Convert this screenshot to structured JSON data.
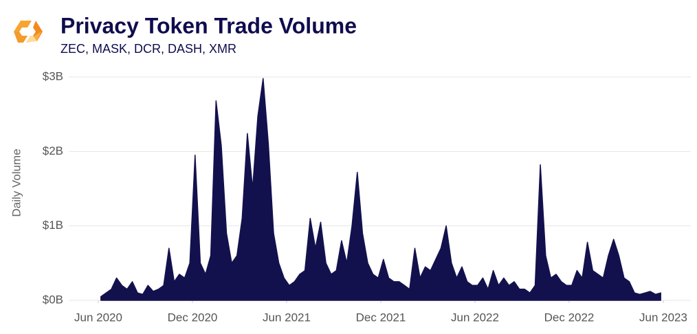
{
  "chart_data": {
    "type": "area",
    "title": "Privacy Token Trade Volume",
    "subtitle": "ZEC, MASK, DCR, DASH, XMR",
    "y_label": "Daily Volume",
    "color": "#13114d",
    "grid": true,
    "xlim": [
      "2020-06",
      "2023-06"
    ],
    "xticks": [
      {
        "value": "2020-06",
        "label": "Jun 2020"
      },
      {
        "value": "2020-12",
        "label": "Dec 2020"
      },
      {
        "value": "2021-06",
        "label": "Jun 2021"
      },
      {
        "value": "2021-12",
        "label": "Dec 2021"
      },
      {
        "value": "2022-06",
        "label": "Jun 2022"
      },
      {
        "value": "2022-12",
        "label": "Dec 2022"
      },
      {
        "value": "2023-06",
        "label": "Jun 2023"
      }
    ],
    "ylim": [
      0,
      3
    ],
    "yticks": [
      {
        "value": 0,
        "label": "$0B"
      },
      {
        "value": 1,
        "label": "$1B"
      },
      {
        "value": 2,
        "label": "$2B"
      },
      {
        "value": 3,
        "label": "$3B"
      }
    ],
    "x": [
      "2020-06",
      "2020-06",
      "2020-06",
      "2020-07",
      "2020-07",
      "2020-07",
      "2020-08",
      "2020-08",
      "2020-08",
      "2020-09",
      "2020-09",
      "2020-09",
      "2020-10",
      "2020-10",
      "2020-10",
      "2020-11",
      "2020-11",
      "2020-11",
      "2020-12",
      "2020-12",
      "2020-12",
      "2021-01",
      "2021-01",
      "2021-01",
      "2021-02",
      "2021-02",
      "2021-02",
      "2021-03",
      "2021-03",
      "2021-03",
      "2021-04",
      "2021-04",
      "2021-04",
      "2021-05",
      "2021-05",
      "2021-05",
      "2021-06",
      "2021-06",
      "2021-06",
      "2021-07",
      "2021-07",
      "2021-07",
      "2021-08",
      "2021-08",
      "2021-08",
      "2021-09",
      "2021-09",
      "2021-09",
      "2021-10",
      "2021-10",
      "2021-10",
      "2021-11",
      "2021-11",
      "2021-11",
      "2021-12",
      "2021-12",
      "2021-12",
      "2022-01",
      "2022-01",
      "2022-01",
      "2022-02",
      "2022-02",
      "2022-02",
      "2022-03",
      "2022-03",
      "2022-03",
      "2022-04",
      "2022-04",
      "2022-04",
      "2022-05",
      "2022-05",
      "2022-05",
      "2022-06",
      "2022-06",
      "2022-06",
      "2022-07",
      "2022-07",
      "2022-07",
      "2022-08",
      "2022-08",
      "2022-08",
      "2022-09",
      "2022-09",
      "2022-09",
      "2022-10",
      "2022-10",
      "2022-10",
      "2022-11",
      "2022-11",
      "2022-11",
      "2022-12",
      "2022-12",
      "2022-12",
      "2023-01",
      "2023-01",
      "2023-01",
      "2023-02",
      "2023-02",
      "2023-02",
      "2023-03",
      "2023-03",
      "2023-03",
      "2023-04",
      "2023-04",
      "2023-04",
      "2023-05",
      "2023-05",
      "2023-05"
    ],
    "values": [
      0.05,
      0.1,
      0.15,
      0.3,
      0.2,
      0.15,
      0.25,
      0.1,
      0.08,
      0.2,
      0.12,
      0.15,
      0.2,
      0.7,
      0.25,
      0.35,
      0.3,
      0.5,
      1.95,
      0.5,
      0.35,
      0.6,
      2.68,
      2.08,
      0.9,
      0.5,
      0.6,
      1.1,
      2.24,
      1.5,
      2.47,
      2.98,
      2.1,
      0.9,
      0.5,
      0.3,
      0.2,
      0.25,
      0.35,
      0.4,
      1.1,
      0.7,
      1.05,
      0.5,
      0.35,
      0.4,
      0.8,
      0.5,
      1.0,
      1.72,
      0.9,
      0.5,
      0.35,
      0.3,
      0.55,
      0.3,
      0.25,
      0.25,
      0.2,
      0.15,
      0.7,
      0.3,
      0.45,
      0.4,
      0.55,
      0.7,
      1.0,
      0.5,
      0.3,
      0.45,
      0.25,
      0.2,
      0.2,
      0.3,
      0.15,
      0.4,
      0.2,
      0.3,
      0.2,
      0.25,
      0.15,
      0.15,
      0.1,
      0.2,
      1.82,
      0.6,
      0.3,
      0.35,
      0.25,
      0.2,
      0.2,
      0.4,
      0.3,
      0.78,
      0.4,
      0.35,
      0.3,
      0.6,
      0.82,
      0.6,
      0.3,
      0.25,
      0.1,
      0.08,
      0.1,
      0.12,
      0.08,
      0.1
    ]
  }
}
